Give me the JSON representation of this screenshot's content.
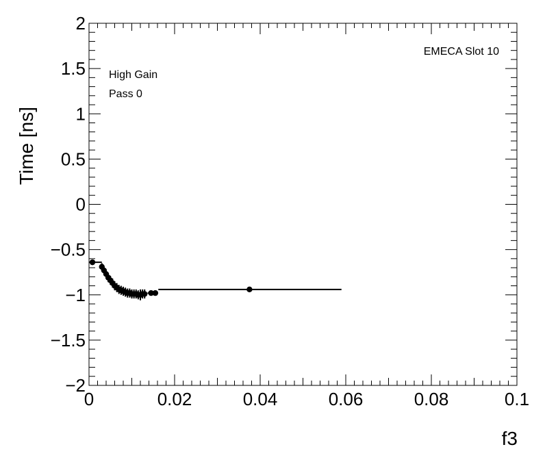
{
  "chart_data": {
    "type": "scatter",
    "xlabel": "f3",
    "ylabel": "Time [ns]",
    "xlim": [
      0,
      0.1
    ],
    "ylim": [
      -2,
      2
    ],
    "x_ticks": [
      0,
      0.02,
      0.04,
      0.06,
      0.08,
      0.1
    ],
    "x_tick_labels": [
      "0",
      "0.02",
      "0.04",
      "0.06",
      "0.08",
      "0.1"
    ],
    "y_ticks": [
      -2,
      -1.5,
      -1,
      -0.5,
      0,
      0.5,
      1,
      1.5,
      2
    ],
    "y_tick_labels": [
      "−2",
      "−1.5",
      "−1",
      "−0.5",
      "0",
      "0.5",
      "1",
      "1.5",
      "2"
    ],
    "annotations": {
      "detector": "EMECA Slot 10",
      "gain": "High Gain",
      "pass": "Pass 0"
    },
    "grid": false,
    "series": [
      {
        "points": [
          {
            "x": 0.0008,
            "y": -0.64,
            "xerr": [
              0.0008,
              0.0022
            ],
            "yerr": 0.03
          },
          {
            "x": 0.003,
            "y": -0.69,
            "xerr": [
              0.0003,
              0.0003
            ],
            "yerr": 0.04
          },
          {
            "x": 0.0035,
            "y": -0.73,
            "xerr": [
              0.0003,
              0.0003
            ],
            "yerr": 0.04
          },
          {
            "x": 0.004,
            "y": -0.77,
            "xerr": [
              0.0003,
              0.0003
            ],
            "yerr": 0.05
          },
          {
            "x": 0.0045,
            "y": -0.81,
            "xerr": [
              0.0003,
              0.0003
            ],
            "yerr": 0.05
          },
          {
            "x": 0.005,
            "y": -0.84,
            "xerr": [
              0.0003,
              0.0003
            ],
            "yerr": 0.05
          },
          {
            "x": 0.0055,
            "y": -0.87,
            "xerr": [
              0.0003,
              0.0003
            ],
            "yerr": 0.05
          },
          {
            "x": 0.006,
            "y": -0.9,
            "xerr": [
              0.0003,
              0.0003
            ],
            "yerr": 0.05
          },
          {
            "x": 0.0065,
            "y": -0.92,
            "xerr": [
              0.0003,
              0.0003
            ],
            "yerr": 0.05
          },
          {
            "x": 0.007,
            "y": -0.94,
            "xerr": [
              0.0003,
              0.0003
            ],
            "yerr": 0.05
          },
          {
            "x": 0.0075,
            "y": -0.95,
            "xerr": [
              0.0003,
              0.0003
            ],
            "yerr": 0.05
          },
          {
            "x": 0.008,
            "y": -0.96,
            "xerr": [
              0.0003,
              0.0003
            ],
            "yerr": 0.05
          },
          {
            "x": 0.0085,
            "y": -0.97,
            "xerr": [
              0.0003,
              0.0003
            ],
            "yerr": 0.05
          },
          {
            "x": 0.009,
            "y": -0.98,
            "xerr": [
              0.0003,
              0.0003
            ],
            "yerr": 0.05
          },
          {
            "x": 0.0095,
            "y": -0.98,
            "xerr": [
              0.0003,
              0.0003
            ],
            "yerr": 0.05
          },
          {
            "x": 0.01,
            "y": -0.99,
            "xerr": [
              0.0003,
              0.0003
            ],
            "yerr": 0.05
          },
          {
            "x": 0.0105,
            "y": -0.99,
            "xerr": [
              0.0003,
              0.0003
            ],
            "yerr": 0.05
          },
          {
            "x": 0.011,
            "y": -0.99,
            "xerr": [
              0.0003,
              0.0003
            ],
            "yerr": 0.05
          },
          {
            "x": 0.0115,
            "y": -1.0,
            "xerr": [
              0.0003,
              0.0003
            ],
            "yerr": 0.05
          },
          {
            "x": 0.012,
            "y": -1.0,
            "xerr": [
              0.0003,
              0.0003
            ],
            "yerr": 0.06
          },
          {
            "x": 0.0125,
            "y": -0.99,
            "xerr": [
              0.0003,
              0.0003
            ],
            "yerr": 0.05
          },
          {
            "x": 0.013,
            "y": -0.99,
            "xerr": [
              0.0003,
              0.0003
            ],
            "yerr": 0.05
          },
          {
            "x": 0.0145,
            "y": -0.98,
            "xerr": [
              0.0008,
              0.0008
            ],
            "yerr": 0.03
          },
          {
            "x": 0.0155,
            "y": -0.98,
            "xerr": [
              0.0005,
              0.0005
            ],
            "yerr": 0.03
          },
          {
            "x": 0.0375,
            "y": -0.94,
            "xerr": [
              0.0213,
              0.0215
            ],
            "yerr": 0.02
          }
        ]
      }
    ]
  }
}
